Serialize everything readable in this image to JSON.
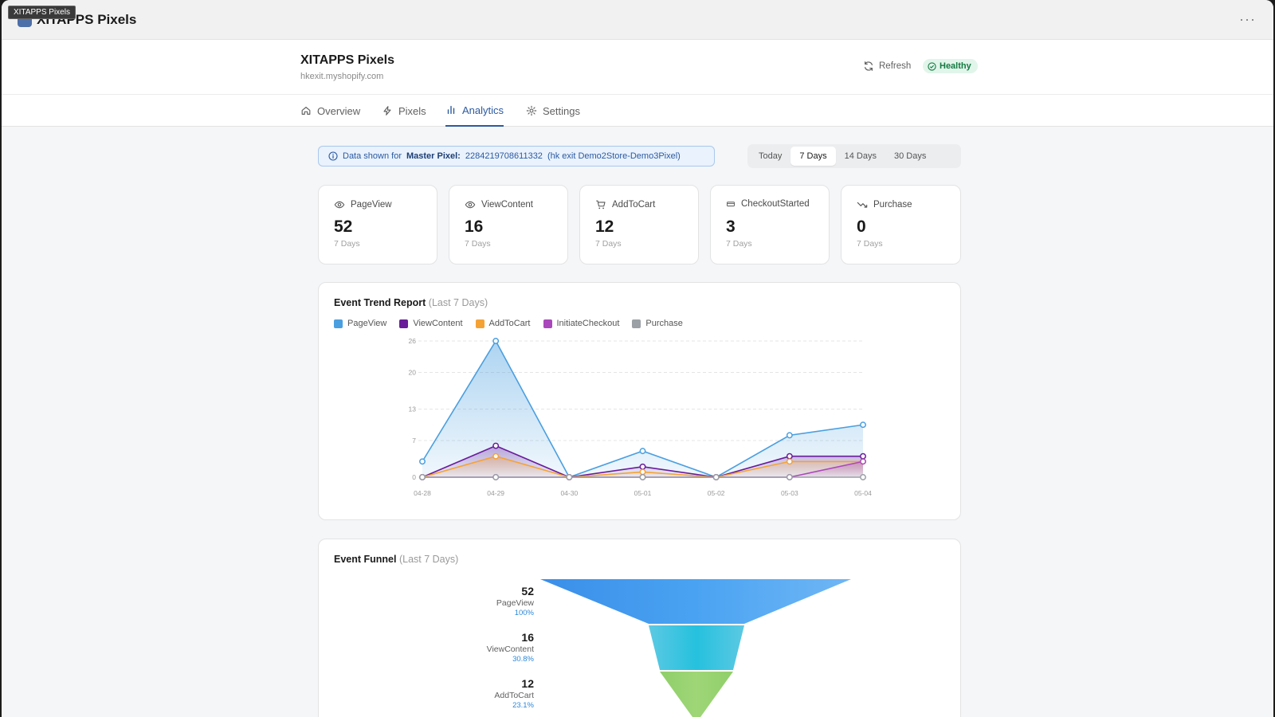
{
  "tooltip": "XITAPPS Pixels",
  "app": {
    "name": "XITAPPS Pixels",
    "more": "···"
  },
  "header": {
    "title": "XITAPPS Pixels",
    "domain": "hkexit.myshopify.com",
    "refresh_label": "Refresh",
    "health_label": "Healthy"
  },
  "tabs": [
    {
      "label": "Overview",
      "icon": "home-icon"
    },
    {
      "label": "Pixels",
      "icon": "bolt-icon"
    },
    {
      "label": "Analytics",
      "icon": "bar-chart-icon",
      "active": true
    },
    {
      "label": "Settings",
      "icon": "gear-icon"
    }
  ],
  "banner": {
    "prefix": "Data shown for",
    "pixel_label": "Master Pixel:",
    "pixel_id": "2284219708611332",
    "pixel_name": "(hk exit Demo2Store-Demo3Pixel)"
  },
  "ranges": [
    {
      "label": "Today"
    },
    {
      "label": "7 Days",
      "active": true
    },
    {
      "label": "14 Days"
    },
    {
      "label": "30 Days"
    }
  ],
  "stats": [
    {
      "label": "PageView",
      "value": "52",
      "sub": "7 Days",
      "icon": "eye-icon"
    },
    {
      "label": "ViewContent",
      "value": "16",
      "sub": "7 Days",
      "icon": "eye-icon"
    },
    {
      "label": "AddToCart",
      "value": "12",
      "sub": "7 Days",
      "icon": "cart-icon"
    },
    {
      "label": "CheckoutStarted",
      "value": "3",
      "sub": "7 Days",
      "icon": "card-icon"
    },
    {
      "label": "Purchase",
      "value": "0",
      "sub": "7 Days",
      "icon": "trend-down-icon"
    }
  ],
  "trend": {
    "title": "Event Trend Report",
    "subtitle": "(Last 7 Days)"
  },
  "funnel": {
    "title": "Event Funnel",
    "subtitle": "(Last 7 Days)",
    "stages": [
      {
        "value": "52",
        "name": "PageView",
        "pct": "100%"
      },
      {
        "value": "16",
        "name": "ViewContent",
        "pct": "30.8%"
      },
      {
        "value": "12",
        "name": "AddToCart",
        "pct": "23.1%"
      }
    ]
  },
  "colors": {
    "pageview": "#4a9fe0",
    "viewcontent": "#6a1b9a",
    "addtocart": "#f5a234",
    "initiatecheckout": "#ab47bc",
    "purchase": "#9aa0a6",
    "accent": "#2c5aa0"
  },
  "chart_data": {
    "type": "line",
    "x": [
      "04-28",
      "04-29",
      "04-30",
      "05-01",
      "05-02",
      "05-03",
      "05-04"
    ],
    "yticks": [
      0,
      7,
      13,
      20,
      26
    ],
    "ylim": [
      0,
      26
    ],
    "grid": true,
    "legend": "top-left",
    "series": [
      {
        "name": "PageView",
        "values": [
          3,
          26,
          0,
          5,
          0,
          8,
          10
        ]
      },
      {
        "name": "ViewContent",
        "values": [
          0,
          6,
          0,
          2,
          0,
          4,
          4
        ]
      },
      {
        "name": "AddToCart",
        "values": [
          0,
          4,
          0,
          1,
          0,
          3,
          3
        ]
      },
      {
        "name": "InitiateCheckout",
        "values": [
          0,
          0,
          0,
          0,
          0,
          0,
          3
        ]
      },
      {
        "name": "Purchase",
        "values": [
          0,
          0,
          0,
          0,
          0,
          0,
          0
        ]
      }
    ]
  }
}
